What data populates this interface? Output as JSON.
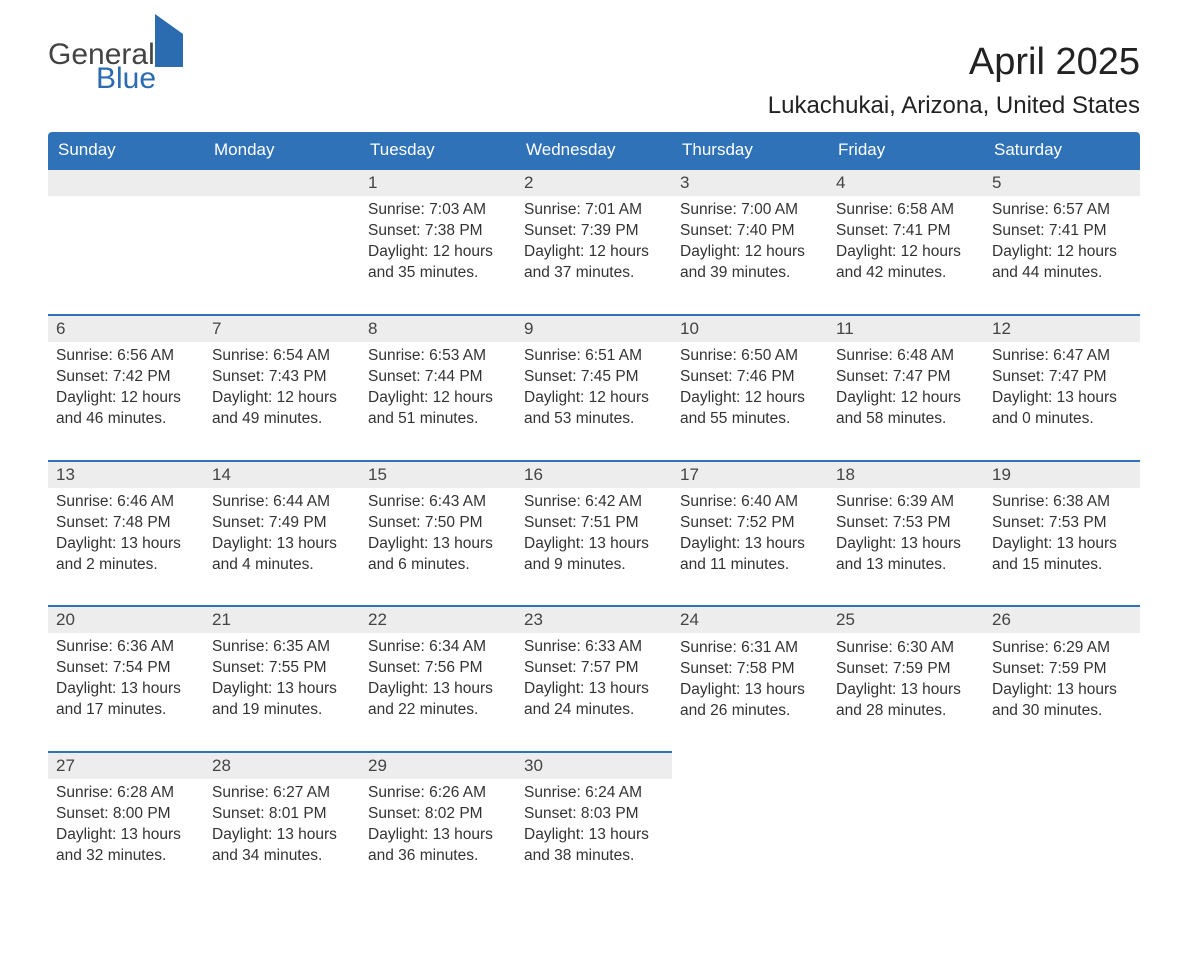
{
  "logo": {
    "word1": "General",
    "word2": "Blue"
  },
  "title": "April 2025",
  "location": "Lukachukai, Arizona, United States",
  "colors": {
    "header_bg": "#2f72b8",
    "header_fg": "#ffffff",
    "daynum_bg": "#ededed",
    "row_border": "#2f72b8",
    "logo_blue": "#2b6cb0",
    "text": "#333333"
  },
  "fonts": {
    "title_size_pt": 28,
    "location_size_pt": 18,
    "header_size_pt": 13,
    "body_size_pt": 11
  },
  "table": {
    "columns": [
      "Sunday",
      "Monday",
      "Tuesday",
      "Wednesday",
      "Thursday",
      "Friday",
      "Saturday"
    ],
    "weeks": [
      [
        null,
        null,
        {
          "day": "1",
          "sunrise": "7:03 AM",
          "sunset": "7:38 PM",
          "daylight": "12 hours and 35 minutes."
        },
        {
          "day": "2",
          "sunrise": "7:01 AM",
          "sunset": "7:39 PM",
          "daylight": "12 hours and 37 minutes."
        },
        {
          "day": "3",
          "sunrise": "7:00 AM",
          "sunset": "7:40 PM",
          "daylight": "12 hours and 39 minutes."
        },
        {
          "day": "4",
          "sunrise": "6:58 AM",
          "sunset": "7:41 PM",
          "daylight": "12 hours and 42 minutes."
        },
        {
          "day": "5",
          "sunrise": "6:57 AM",
          "sunset": "7:41 PM",
          "daylight": "12 hours and 44 minutes."
        }
      ],
      [
        {
          "day": "6",
          "sunrise": "6:56 AM",
          "sunset": "7:42 PM",
          "daylight": "12 hours and 46 minutes."
        },
        {
          "day": "7",
          "sunrise": "6:54 AM",
          "sunset": "7:43 PM",
          "daylight": "12 hours and 49 minutes."
        },
        {
          "day": "8",
          "sunrise": "6:53 AM",
          "sunset": "7:44 PM",
          "daylight": "12 hours and 51 minutes."
        },
        {
          "day": "9",
          "sunrise": "6:51 AM",
          "sunset": "7:45 PM",
          "daylight": "12 hours and 53 minutes."
        },
        {
          "day": "10",
          "sunrise": "6:50 AM",
          "sunset": "7:46 PM",
          "daylight": "12 hours and 55 minutes."
        },
        {
          "day": "11",
          "sunrise": "6:48 AM",
          "sunset": "7:47 PM",
          "daylight": "12 hours and 58 minutes."
        },
        {
          "day": "12",
          "sunrise": "6:47 AM",
          "sunset": "7:47 PM",
          "daylight": "13 hours and 0 minutes."
        }
      ],
      [
        {
          "day": "13",
          "sunrise": "6:46 AM",
          "sunset": "7:48 PM",
          "daylight": "13 hours and 2 minutes."
        },
        {
          "day": "14",
          "sunrise": "6:44 AM",
          "sunset": "7:49 PM",
          "daylight": "13 hours and 4 minutes."
        },
        {
          "day": "15",
          "sunrise": "6:43 AM",
          "sunset": "7:50 PM",
          "daylight": "13 hours and 6 minutes."
        },
        {
          "day": "16",
          "sunrise": "6:42 AM",
          "sunset": "7:51 PM",
          "daylight": "13 hours and 9 minutes."
        },
        {
          "day": "17",
          "sunrise": "6:40 AM",
          "sunset": "7:52 PM",
          "daylight": "13 hours and 11 minutes."
        },
        {
          "day": "18",
          "sunrise": "6:39 AM",
          "sunset": "7:53 PM",
          "daylight": "13 hours and 13 minutes."
        },
        {
          "day": "19",
          "sunrise": "6:38 AM",
          "sunset": "7:53 PM",
          "daylight": "13 hours and 15 minutes."
        }
      ],
      [
        {
          "day": "20",
          "sunrise": "6:36 AM",
          "sunset": "7:54 PM",
          "daylight": "13 hours and 17 minutes."
        },
        {
          "day": "21",
          "sunrise": "6:35 AM",
          "sunset": "7:55 PM",
          "daylight": "13 hours and 19 minutes."
        },
        {
          "day": "22",
          "sunrise": "6:34 AM",
          "sunset": "7:56 PM",
          "daylight": "13 hours and 22 minutes."
        },
        {
          "day": "23",
          "sunrise": "6:33 AM",
          "sunset": "7:57 PM",
          "daylight": "13 hours and 24 minutes."
        },
        {
          "day": "24",
          "sunrise": "6:31 AM",
          "sunset": "7:58 PM",
          "daylight": "13 hours and 26 minutes."
        },
        {
          "day": "25",
          "sunrise": "6:30 AM",
          "sunset": "7:59 PM",
          "daylight": "13 hours and 28 minutes."
        },
        {
          "day": "26",
          "sunrise": "6:29 AM",
          "sunset": "7:59 PM",
          "daylight": "13 hours and 30 minutes."
        }
      ],
      [
        {
          "day": "27",
          "sunrise": "6:28 AM",
          "sunset": "8:00 PM",
          "daylight": "13 hours and 32 minutes."
        },
        {
          "day": "28",
          "sunrise": "6:27 AM",
          "sunset": "8:01 PM",
          "daylight": "13 hours and 34 minutes."
        },
        {
          "day": "29",
          "sunrise": "6:26 AM",
          "sunset": "8:02 PM",
          "daylight": "13 hours and 36 minutes."
        },
        {
          "day": "30",
          "sunrise": "6:24 AM",
          "sunset": "8:03 PM",
          "daylight": "13 hours and 38 minutes."
        },
        null,
        null,
        null
      ]
    ]
  },
  "labels": {
    "sunrise": "Sunrise:",
    "sunset": "Sunset:",
    "daylight": "Daylight:"
  }
}
